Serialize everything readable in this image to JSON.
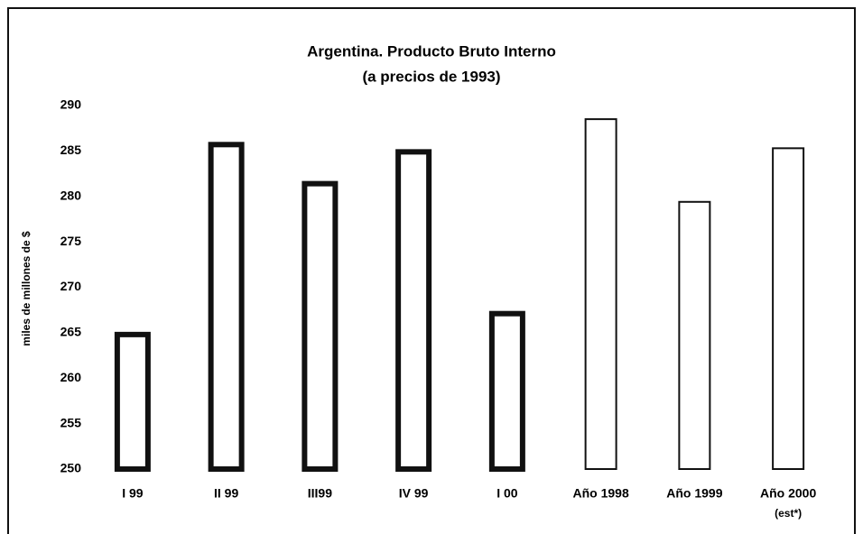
{
  "chart_data": {
    "type": "bar",
    "title": "Argentina. Producto Bruto Interno",
    "subtitle": "(a precios de 1993)",
    "ylabel": "miles de millones de $",
    "categories": [
      "I 99",
      "II 99",
      "III99",
      "IV 99",
      "I 00",
      "Año 1998",
      "Año 1999",
      "Año 2000"
    ],
    "annotation": "(est*)",
    "values": [
      265.1,
      286.0,
      281.7,
      285.2,
      267.4,
      288.6,
      279.5,
      285.4
    ],
    "edgewidths": [
      6,
      6,
      6,
      6,
      6,
      2,
      2,
      2
    ],
    "color": "#ffffff",
    "edgecolor": "#111111",
    "ylim": [
      250,
      290
    ],
    "yticks": [
      250,
      255,
      260,
      265,
      270,
      275,
      280,
      285,
      290
    ],
    "grid": false
  }
}
